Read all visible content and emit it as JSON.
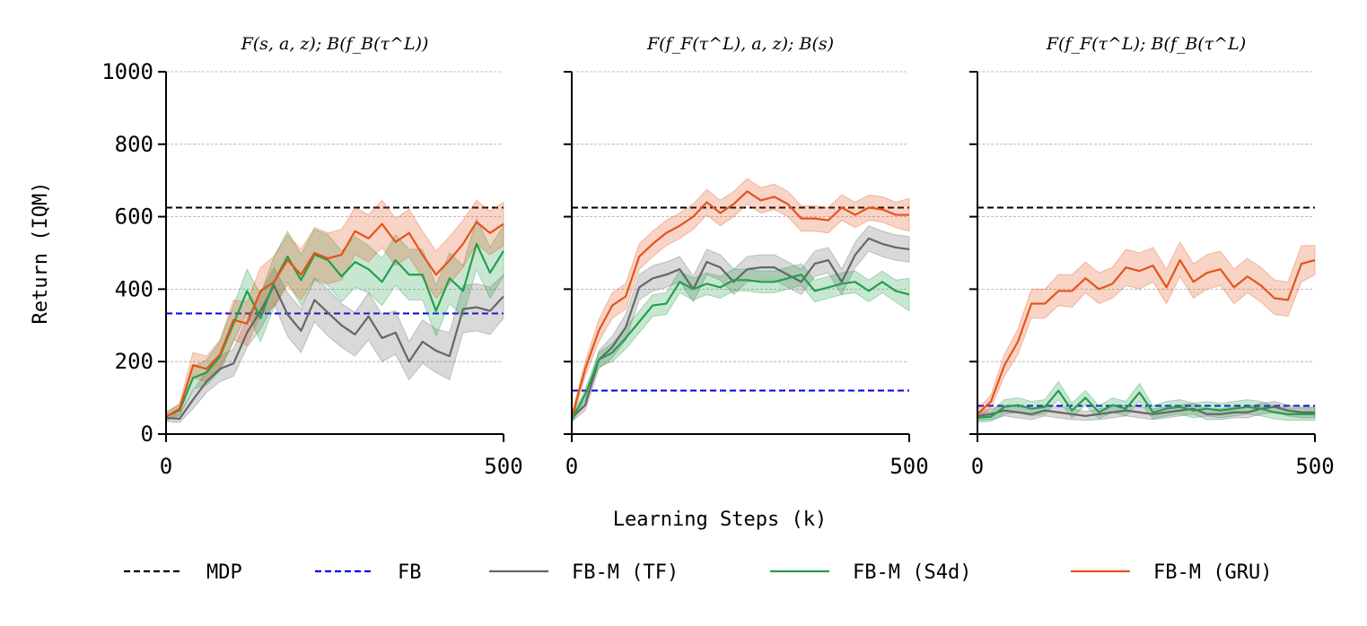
{
  "chart_data": [
    {
      "type": "line",
      "title": "F(s, a, z); B(f_B(τ^L))",
      "xlim": [
        0,
        500
      ],
      "ylim": [
        0,
        1000
      ],
      "x_ticks": [
        0,
        500
      ],
      "y_ticks": [
        0,
        200,
        400,
        600,
        800,
        1000
      ],
      "grid": true,
      "baselines": [
        {
          "name": "MDP",
          "value": 625
        },
        {
          "name": "FB",
          "value": 333
        }
      ],
      "x": [
        0,
        20,
        40,
        60,
        80,
        100,
        120,
        140,
        160,
        180,
        200,
        220,
        240,
        260,
        280,
        300,
        320,
        340,
        360,
        380,
        400,
        420,
        440,
        460,
        480,
        500
      ],
      "series": [
        {
          "name": "FB-M (TF)",
          "values": [
            45,
            42,
            95,
            145,
            180,
            195,
            280,
            340,
            410,
            330,
            285,
            370,
            335,
            300,
            275,
            325,
            265,
            280,
            200,
            255,
            230,
            215,
            345,
            350,
            340,
            380
          ],
          "lower": [
            35,
            32,
            70,
            115,
            145,
            160,
            240,
            290,
            360,
            270,
            225,
            310,
            270,
            240,
            215,
            260,
            200,
            220,
            150,
            195,
            170,
            150,
            280,
            285,
            275,
            320
          ],
          "upper": [
            55,
            55,
            120,
            175,
            215,
            235,
            320,
            390,
            460,
            390,
            345,
            430,
            400,
            360,
            335,
            390,
            330,
            340,
            255,
            315,
            290,
            280,
            410,
            415,
            405,
            440
          ]
        },
        {
          "name": "FB-M (S4d)",
          "values": [
            50,
            65,
            155,
            170,
            215,
            305,
            395,
            320,
            420,
            490,
            425,
            495,
            480,
            435,
            475,
            455,
            420,
            480,
            440,
            440,
            340,
            430,
            395,
            525,
            445,
            505
          ],
          "lower": [
            38,
            50,
            125,
            135,
            175,
            255,
            335,
            255,
            350,
            420,
            355,
            425,
            410,
            365,
            405,
            390,
            355,
            410,
            370,
            370,
            270,
            360,
            325,
            455,
            375,
            435
          ],
          "upper": [
            62,
            80,
            185,
            205,
            255,
            355,
            455,
            385,
            490,
            560,
            495,
            565,
            550,
            505,
            545,
            520,
            485,
            550,
            510,
            510,
            410,
            500,
            465,
            595,
            515,
            575
          ]
        },
        {
          "name": "FB-M (GRU)",
          "values": [
            48,
            70,
            190,
            180,
            220,
            315,
            305,
            395,
            420,
            480,
            440,
            500,
            485,
            495,
            560,
            540,
            580,
            530,
            555,
            495,
            440,
            480,
            525,
            585,
            555,
            580
          ],
          "lower": [
            38,
            55,
            155,
            145,
            180,
            260,
            245,
            330,
            350,
            410,
            370,
            430,
            415,
            425,
            495,
            475,
            515,
            465,
            490,
            430,
            375,
            415,
            460,
            525,
            495,
            520
          ],
          "upper": [
            58,
            85,
            225,
            215,
            260,
            370,
            365,
            460,
            490,
            550,
            510,
            570,
            555,
            565,
            625,
            605,
            645,
            595,
            620,
            560,
            505,
            545,
            590,
            645,
            615,
            640
          ]
        }
      ]
    },
    {
      "type": "line",
      "title": "F(f_F(τ^L), a, z); B(s)",
      "xlim": [
        0,
        500
      ],
      "ylim": [
        0,
        1000
      ],
      "x_ticks": [
        0,
        500
      ],
      "y_ticks": [
        0,
        200,
        400,
        600,
        800,
        1000
      ],
      "grid": true,
      "baselines": [
        {
          "name": "MDP",
          "value": 625
        },
        {
          "name": "FB",
          "value": 120
        }
      ],
      "x": [
        0,
        20,
        40,
        60,
        80,
        100,
        120,
        140,
        160,
        180,
        200,
        220,
        240,
        260,
        280,
        300,
        320,
        340,
        360,
        380,
        400,
        420,
        440,
        460,
        480,
        500
      ],
      "series": [
        {
          "name": "FB-M (TF)",
          "values": [
            45,
            80,
            205,
            240,
            295,
            405,
            430,
            440,
            455,
            400,
            475,
            460,
            420,
            455,
            460,
            460,
            440,
            420,
            470,
            480,
            420,
            495,
            540,
            525,
            515,
            510
          ],
          "lower": [
            35,
            65,
            180,
            210,
            260,
            370,
            395,
            405,
            420,
            365,
            440,
            425,
            385,
            420,
            425,
            425,
            405,
            385,
            435,
            445,
            385,
            460,
            505,
            490,
            480,
            475
          ],
          "upper": [
            55,
            95,
            230,
            270,
            330,
            440,
            465,
            475,
            490,
            435,
            510,
            495,
            455,
            490,
            495,
            495,
            475,
            455,
            505,
            515,
            455,
            530,
            575,
            560,
            550,
            545
          ]
        },
        {
          "name": "FB-M (S4d)",
          "values": [
            40,
            110,
            205,
            225,
            265,
            310,
            355,
            360,
            420,
            400,
            415,
            405,
            425,
            425,
            420,
            420,
            430,
            440,
            395,
            405,
            415,
            420,
            395,
            420,
            395,
            385
          ],
          "lower": [
            30,
            95,
            185,
            200,
            235,
            280,
            325,
            330,
            390,
            370,
            385,
            375,
            395,
            395,
            390,
            390,
            400,
            410,
            365,
            375,
            385,
            390,
            365,
            390,
            365,
            340
          ],
          "upper": [
            50,
            125,
            225,
            250,
            295,
            340,
            385,
            390,
            450,
            430,
            445,
            435,
            455,
            455,
            450,
            450,
            460,
            470,
            425,
            435,
            445,
            450,
            425,
            450,
            425,
            430
          ]
        },
        {
          "name": "FB-M (GRU)",
          "values": [
            45,
            180,
            285,
            355,
            380,
            490,
            525,
            555,
            575,
            600,
            640,
            610,
            635,
            670,
            645,
            655,
            635,
            595,
            595,
            590,
            625,
            605,
            625,
            620,
            605,
            605
          ],
          "lower": [
            35,
            160,
            255,
            320,
            345,
            455,
            490,
            520,
            540,
            565,
            605,
            575,
            600,
            635,
            610,
            620,
            600,
            560,
            560,
            555,
            590,
            570,
            590,
            585,
            570,
            560
          ],
          "upper": [
            55,
            200,
            315,
            390,
            415,
            525,
            560,
            590,
            610,
            635,
            675,
            645,
            670,
            705,
            680,
            690,
            670,
            630,
            630,
            625,
            660,
            640,
            660,
            655,
            640,
            650
          ]
        }
      ]
    },
    {
      "type": "line",
      "title": "F(f_F(τ^L); B(f_B(τ^L)",
      "xlim": [
        0,
        500
      ],
      "ylim": [
        0,
        1000
      ],
      "x_ticks": [
        0,
        500
      ],
      "y_ticks": [
        0,
        200,
        400,
        600,
        800,
        1000
      ],
      "grid": true,
      "baselines": [
        {
          "name": "MDP",
          "value": 625
        },
        {
          "name": "FB",
          "value": 78
        }
      ],
      "x": [
        0,
        20,
        40,
        60,
        80,
        100,
        120,
        140,
        160,
        180,
        200,
        220,
        240,
        260,
        280,
        300,
        320,
        340,
        360,
        380,
        400,
        420,
        440,
        460,
        480,
        500
      ],
      "series": [
        {
          "name": "FB-M (TF)",
          "values": [
            50,
            55,
            65,
            60,
            55,
            65,
            60,
            55,
            50,
            55,
            60,
            65,
            60,
            55,
            60,
            65,
            70,
            55,
            55,
            60,
            60,
            70,
            75,
            65,
            60,
            60
          ],
          "lower": [
            38,
            40,
            50,
            45,
            40,
            50,
            45,
            40,
            38,
            40,
            45,
            50,
            45,
            40,
            45,
            50,
            55,
            40,
            40,
            45,
            45,
            55,
            60,
            50,
            45,
            45
          ],
          "upper": [
            62,
            70,
            80,
            75,
            70,
            80,
            75,
            70,
            62,
            70,
            75,
            80,
            75,
            70,
            75,
            80,
            85,
            70,
            70,
            75,
            75,
            85,
            90,
            80,
            75,
            75
          ]
        },
        {
          "name": "FB-M (S4d)",
          "values": [
            45,
            48,
            75,
            80,
            70,
            75,
            120,
            65,
            100,
            60,
            80,
            70,
            115,
            60,
            70,
            75,
            65,
            70,
            65,
            70,
            75,
            70,
            60,
            55,
            55,
            55
          ],
          "lower": [
            33,
            35,
            55,
            60,
            50,
            55,
            95,
            45,
            80,
            42,
            60,
            50,
            90,
            42,
            50,
            55,
            45,
            50,
            45,
            50,
            55,
            50,
            42,
            38,
            38,
            38
          ],
          "upper": [
            57,
            62,
            95,
            100,
            90,
            95,
            145,
            85,
            120,
            78,
            100,
            90,
            140,
            78,
            90,
            95,
            85,
            90,
            85,
            90,
            95,
            90,
            78,
            72,
            72,
            72
          ]
        },
        {
          "name": "FB-M (GRU)",
          "values": [
            55,
            90,
            190,
            255,
            360,
            360,
            395,
            395,
            430,
            400,
            415,
            460,
            450,
            465,
            405,
            480,
            420,
            445,
            455,
            405,
            435,
            410,
            375,
            370,
            470,
            480
          ],
          "lower": [
            42,
            72,
            160,
            220,
            320,
            320,
            355,
            350,
            390,
            360,
            375,
            410,
            400,
            420,
            360,
            435,
            375,
            400,
            410,
            360,
            390,
            365,
            330,
            325,
            420,
            440
          ],
          "upper": [
            68,
            108,
            220,
            290,
            400,
            400,
            440,
            440,
            475,
            445,
            460,
            510,
            500,
            515,
            455,
            530,
            470,
            495,
            505,
            455,
            485,
            460,
            425,
            420,
            520,
            520
          ]
        }
      ]
    }
  ],
  "shared": {
    "ylabel": "Return (IQM)",
    "xlabel": "Learning Steps (k)"
  },
  "legend": {
    "placement": "bottom",
    "entries": [
      {
        "label": "MDP",
        "style": "dashed",
        "color": "#000000"
      },
      {
        "label": "FB",
        "style": "dashed",
        "color": "#0000ee"
      },
      {
        "label": "FB-M (TF)",
        "style": "solid",
        "color": "#666666"
      },
      {
        "label": "FB-M (S4d)",
        "style": "solid",
        "color": "#22a04b"
      },
      {
        "label": "FB-M (GRU)",
        "style": "solid",
        "color": "#e4541a"
      }
    ]
  },
  "colors": {
    "MDP": "#000000",
    "FB": "#0000ee",
    "FB-M (TF)": "#666666",
    "FB-M (S4d)": "#22a04b",
    "FB-M (GRU)": "#e4541a"
  }
}
